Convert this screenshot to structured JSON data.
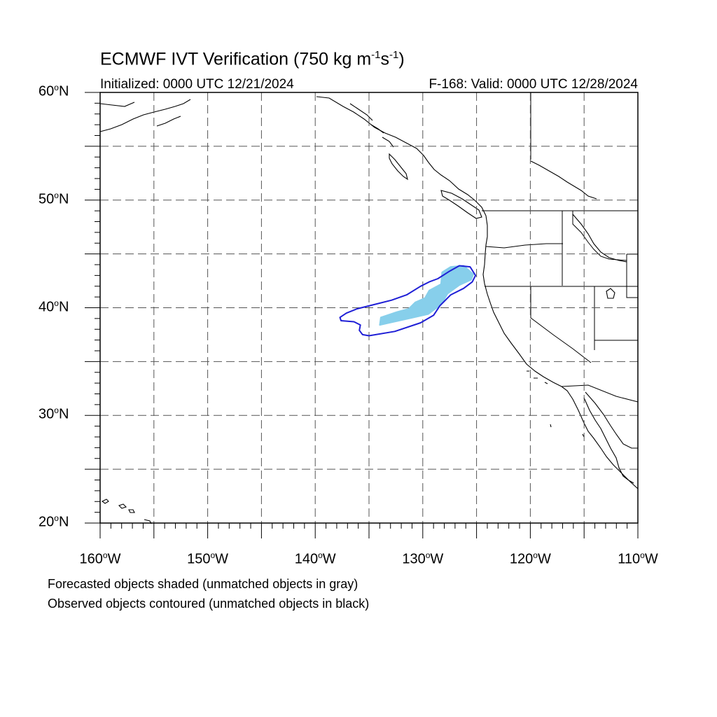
{
  "map": {
    "title_prefix": "ECMWF IVT Verification (750 kg m",
    "title_exp1": "-1",
    "title_mid": "s",
    "title_exp2": "-1",
    "title_suffix": ")",
    "initialized": "Initialized: 0000 UTC 12/21/2024",
    "valid": "F-168: Valid: 0000 UTC 12/28/2024",
    "extent": {
      "lon_min": -160,
      "lon_max": -110,
      "lat_min": 20,
      "lat_max": 60
    },
    "lat_labels": [
      {
        "num": "60",
        "hem": "N",
        "lat": 60
      },
      {
        "num": "50",
        "hem": "N",
        "lat": 50
      },
      {
        "num": "40",
        "hem": "N",
        "lat": 40
      },
      {
        "num": "30",
        "hem": "N",
        "lat": 30
      },
      {
        "num": "20",
        "hem": "N",
        "lat": 20
      }
    ],
    "lon_labels": [
      {
        "num": "160",
        "hem": "W",
        "lon": -160
      },
      {
        "num": "150",
        "hem": "W",
        "lon": -150
      },
      {
        "num": "140",
        "hem": "W",
        "lon": -140
      },
      {
        "num": "130",
        "hem": "W",
        "lon": -130
      },
      {
        "num": "120",
        "hem": "W",
        "lon": -120
      },
      {
        "num": "110",
        "hem": "W",
        "lon": -110
      }
    ],
    "degree_symbol": "o",
    "gridline_spacing_deg": 5,
    "forecast_fill_color": "#87cfeb",
    "observed_contour_color": "#1f1fd6",
    "coastline_color": "#000000",
    "forecast_object": [
      [
        -131.3,
        39.0
      ],
      [
        -129.5,
        39.4
      ],
      [
        -128.3,
        40.3
      ],
      [
        -127.7,
        41.3
      ],
      [
        -126.6,
        42.1
      ],
      [
        -125.5,
        42.6
      ],
      [
        -125.3,
        43.1
      ],
      [
        -126.2,
        43.9
      ],
      [
        -127.4,
        43.8
      ],
      [
        -128.2,
        43.3
      ],
      [
        -128.3,
        42.2
      ],
      [
        -129.4,
        41.6
      ],
      [
        -129.8,
        40.9
      ],
      [
        -130.7,
        40.5
      ],
      [
        -131.3,
        39.9
      ],
      [
        -132.4,
        39.6
      ],
      [
        -133.9,
        39.1
      ],
      [
        -134.0,
        38.4
      ],
      [
        -133.1,
        38.6
      ]
    ],
    "observed_object": [
      [
        -135.0,
        37.4
      ],
      [
        -132.6,
        37.8
      ],
      [
        -130.2,
        38.6
      ],
      [
        -129.0,
        39.3
      ],
      [
        -128.4,
        40.2
      ],
      [
        -127.4,
        41.2
      ],
      [
        -126.2,
        41.8
      ],
      [
        -125.4,
        42.4
      ],
      [
        -125.1,
        43.0
      ],
      [
        -125.6,
        43.8
      ],
      [
        -126.6,
        43.9
      ],
      [
        -127.5,
        43.4
      ],
      [
        -128.6,
        42.7
      ],
      [
        -129.4,
        42.4
      ],
      [
        -130.2,
        42.0
      ],
      [
        -131.5,
        41.2
      ],
      [
        -132.9,
        40.7
      ],
      [
        -134.5,
        40.3
      ],
      [
        -136.1,
        39.9
      ],
      [
        -137.1,
        39.5
      ],
      [
        -137.7,
        39.1
      ],
      [
        -137.6,
        38.8
      ],
      [
        -136.4,
        38.7
      ],
      [
        -135.8,
        38.4
      ],
      [
        -135.9,
        37.9
      ],
      [
        -135.6,
        37.5
      ]
    ]
  },
  "legend": {
    "forecast_note": "Forecasted objects shaded (unmatched objects in gray)",
    "observed_note": "Observed objects contoured (unmatched objects in black)"
  }
}
